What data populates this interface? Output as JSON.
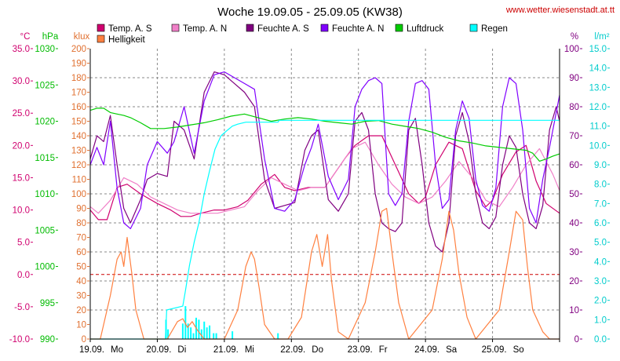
{
  "chart_data": {
    "type": "line",
    "title": "Woche 19.09.05 - 25.09.05 (KW38)",
    "source": "www.wetter.wiesenstadt.at.tt",
    "x_labels": [
      "19.09.",
      "Mo",
      "20.09.",
      "Di",
      "21.09.",
      "Mi",
      "22.09.",
      "Do",
      "23.09.",
      "Fr",
      "24.09.",
      "Sa",
      "25.09.",
      "So"
    ],
    "x_range": [
      0,
      7
    ],
    "axes": {
      "temp": {
        "unit": "°C",
        "range": [
          -10,
          35
        ],
        "ticks": [
          "35.0",
          "30.0",
          "25.0",
          "20.0",
          "15.0",
          "10.0",
          "5.0",
          "0.0",
          "-5.0",
          "-10.0"
        ],
        "color": "#d0006f"
      },
      "pressure": {
        "unit": "hPa",
        "range": [
          990,
          1030
        ],
        "ticks": [
          "1030",
          "1025",
          "1020",
          "1015",
          "1010",
          "1005",
          "1000",
          "995",
          "990"
        ],
        "color": "#00bb00"
      },
      "lux": {
        "unit": "klux",
        "range": [
          0,
          200
        ],
        "ticks": [
          "200",
          "190",
          "180",
          "170",
          "160",
          "150",
          "140",
          "130",
          "120",
          "110",
          "100",
          "90",
          "80",
          "70",
          "60",
          "50",
          "40",
          "30",
          "20",
          "10",
          "0"
        ],
        "color": "#e07030"
      },
      "humidity": {
        "unit": "%",
        "range": [
          0,
          100
        ],
        "ticks": [
          "100",
          "90",
          "80",
          "70",
          "60",
          "50",
          "40",
          "30",
          "20",
          "10",
          "0"
        ],
        "color": "#800080"
      },
      "rain": {
        "unit": "l/m²",
        "range": [
          0,
          15
        ],
        "ticks": [
          "15.0",
          "14.0",
          "13.0",
          "12.0",
          "11.0",
          "10.0",
          "9.0",
          "8.0",
          "7.0",
          "6.0",
          "5.0",
          "4.0",
          "3.0",
          "2.0",
          "1.0",
          "0.0"
        ],
        "color": "#00cccc"
      }
    },
    "legend": [
      {
        "name": "Temp. A. S",
        "color": "#d0006f"
      },
      {
        "name": "Temp. A. N",
        "color": "#f080c8"
      },
      {
        "name": "Feuchte A. S",
        "color": "#800080"
      },
      {
        "name": "Feuchte A. N",
        "color": "#8000ff"
      },
      {
        "name": "Luftdruck",
        "color": "#00cc00"
      },
      {
        "name": "Regen",
        "color": "#00ffff"
      },
      {
        "name": "Helligkeit",
        "color": "#ff8040"
      }
    ],
    "series": [
      {
        "name": "Temp. A. S",
        "axis": "temp",
        "color": "#d0006f",
        "x": [
          0,
          0.12,
          0.25,
          0.4,
          0.55,
          0.75,
          1.0,
          1.2,
          1.35,
          1.5,
          1.65,
          1.85,
          2.0,
          2.2,
          2.35,
          2.55,
          2.75,
          2.9,
          3.05,
          3.25,
          3.5,
          3.8,
          3.95,
          4.15,
          4.35,
          4.55,
          4.75,
          4.9,
          5.0,
          5.15,
          5.35,
          5.55,
          5.75,
          5.9,
          6.0,
          6.15,
          6.35,
          6.5,
          6.65,
          6.8,
          7.0
        ],
        "y": [
          10,
          8.5,
          8.5,
          13.5,
          14,
          12.5,
          11,
          10,
          9,
          9,
          9.5,
          10,
          10,
          10.5,
          11.5,
          14,
          15.5,
          13.5,
          13,
          13.5,
          13.5,
          18,
          20,
          21.5,
          21.5,
          17,
          12.5,
          11,
          12,
          17,
          20.5,
          19.5,
          13,
          10.5,
          11.5,
          15.5,
          19,
          20,
          14.5,
          11,
          9.5
        ]
      },
      {
        "name": "Temp. A. N",
        "axis": "temp",
        "color": "#f080c8",
        "x": [
          0,
          0.12,
          0.3,
          0.5,
          0.7,
          0.9,
          1.1,
          1.3,
          1.5,
          1.7,
          1.9,
          2.1,
          2.3,
          2.5,
          2.7,
          2.9,
          3.1,
          3.3,
          3.5,
          3.7,
          3.9,
          4.1,
          4.3,
          4.5,
          4.7,
          4.9,
          5.1,
          5.3,
          5.5,
          5.7,
          5.9,
          6.1,
          6.3,
          6.5,
          6.7,
          6.9,
          7.0
        ],
        "y": [
          10.5,
          9.5,
          11.5,
          15,
          14,
          12,
          11,
          10,
          9.5,
          9.5,
          9.5,
          10,
          10.5,
          13,
          15,
          14,
          13,
          13.5,
          13.5,
          16.5,
          19.5,
          20.5,
          17,
          14,
          12,
          11,
          12,
          14.5,
          17.5,
          15,
          11.5,
          10.5,
          13.5,
          17,
          19.5,
          15.5,
          13
        ]
      },
      {
        "name": "Feuchte A. S",
        "axis": "humidity",
        "color": "#800080",
        "x": [
          0,
          0.1,
          0.2,
          0.3,
          0.4,
          0.5,
          0.6,
          0.75,
          0.85,
          1.0,
          1.15,
          1.25,
          1.4,
          1.55,
          1.7,
          1.85,
          2.0,
          2.15,
          2.3,
          2.45,
          2.6,
          2.75,
          2.9,
          3.05,
          3.2,
          3.3,
          3.4,
          3.55,
          3.7,
          3.85,
          3.95,
          4.05,
          4.15,
          4.25,
          4.35,
          4.45,
          4.55,
          4.65,
          4.75,
          4.85,
          4.95,
          5.05,
          5.15,
          5.25,
          5.35,
          5.45,
          5.55,
          5.65,
          5.75,
          5.85,
          5.95,
          6.05,
          6.15,
          6.25,
          6.35,
          6.45,
          6.55,
          6.65,
          6.75,
          6.85,
          6.95,
          7.0
        ],
        "y": [
          62,
          70,
          68,
          77,
          60,
          45,
          40,
          48,
          55,
          57,
          56,
          75,
          72,
          62,
          85,
          92,
          91,
          88,
          85,
          80,
          55,
          45,
          46,
          47,
          65,
          70,
          72,
          48,
          44,
          50,
          75,
          78,
          72,
          50,
          40,
          38,
          37,
          40,
          72,
          76,
          60,
          40,
          32,
          30,
          40,
          70,
          78,
          68,
          50,
          40,
          38,
          42,
          60,
          70,
          66,
          50,
          40,
          38,
          46,
          72,
          80,
          75
        ]
      },
      {
        "name": "Feuchte A. N",
        "axis": "humidity",
        "color": "#8000ff",
        "x": [
          0,
          0.1,
          0.2,
          0.3,
          0.4,
          0.5,
          0.6,
          0.75,
          0.85,
          1.0,
          1.15,
          1.25,
          1.4,
          1.55,
          1.7,
          1.85,
          2.0,
          2.15,
          2.3,
          2.45,
          2.6,
          2.75,
          2.9,
          3.05,
          3.2,
          3.3,
          3.4,
          3.55,
          3.7,
          3.85,
          3.95,
          4.05,
          4.15,
          4.25,
          4.35,
          4.45,
          4.55,
          4.65,
          4.75,
          4.85,
          4.95,
          5.05,
          5.15,
          5.25,
          5.35,
          5.45,
          5.55,
          5.65,
          5.75,
          5.85,
          5.95,
          6.05,
          6.15,
          6.25,
          6.35,
          6.45,
          6.55,
          6.65,
          6.75,
          6.85,
          6.95,
          7.0
        ],
        "y": [
          60,
          66,
          60,
          75,
          52,
          40,
          38,
          45,
          60,
          68,
          64,
          68,
          80,
          64,
          82,
          91,
          92,
          90,
          88,
          86,
          62,
          45,
          44,
          48,
          60,
          66,
          74,
          56,
          48,
          55,
          80,
          86,
          89,
          90,
          88,
          50,
          46,
          50,
          75,
          88,
          89,
          86,
          60,
          45,
          48,
          72,
          82,
          76,
          55,
          46,
          44,
          52,
          80,
          90,
          88,
          72,
          45,
          40,
          55,
          66,
          78,
          84
        ]
      },
      {
        "name": "Luftdruck",
        "axis": "pressure",
        "color": "#00cc00",
        "x": [
          0,
          0.1,
          0.2,
          0.3,
          0.4,
          0.5,
          0.6,
          0.75,
          0.9,
          1.1,
          1.3,
          1.5,
          1.7,
          1.9,
          2.1,
          2.3,
          2.5,
          2.7,
          2.9,
          3.1,
          3.3,
          3.5,
          3.7,
          3.9,
          4.1,
          4.3,
          4.5,
          4.7,
          4.9,
          5.1,
          5.3,
          5.5,
          5.7,
          5.9,
          6.1,
          6.3,
          6.5,
          6.6,
          6.7,
          6.8,
          6.9,
          7.0
        ],
        "y": [
          1021.5,
          1021.8,
          1021.8,
          1021.2,
          1021.0,
          1020.8,
          1020.5,
          1019.8,
          1019.0,
          1019.0,
          1019.2,
          1019.5,
          1019.8,
          1020.2,
          1020.7,
          1021.0,
          1020.5,
          1020.0,
          1020.3,
          1020.5,
          1020.3,
          1020.0,
          1019.8,
          1019.6,
          1020.0,
          1020.1,
          1019.6,
          1019.3,
          1019.0,
          1018.5,
          1017.8,
          1017.3,
          1017.0,
          1016.6,
          1016.4,
          1016.2,
          1016.0,
          1015.6,
          1014.5,
          1014.8,
          1015.2,
          1015.5
        ]
      },
      {
        "name": "Regen",
        "axis": "rain",
        "color": "#00ffff",
        "x": [
          0,
          1.0,
          1.12,
          1.14,
          1.38,
          1.42,
          1.48,
          1.55,
          1.62,
          1.7,
          1.78,
          1.86,
          1.95,
          2.05,
          2.12,
          2.2,
          2.32,
          2.5,
          2.7,
          2.8,
          2.82,
          3.1,
          7.0
        ],
        "y": [
          0,
          0,
          0,
          1.5,
          1.7,
          2.5,
          3.8,
          5.0,
          6.0,
          7.5,
          8.7,
          9.8,
          10.5,
          10.8,
          11.0,
          11.1,
          11.2,
          11.2,
          11.2,
          11.2,
          11.3,
          11.3,
          11.3
        ]
      },
      {
        "name": "Helligkeit",
        "axis": "lux",
        "color": "#ff8040",
        "x": [
          0,
          0.15,
          0.3,
          0.4,
          0.46,
          0.5,
          0.55,
          0.62,
          0.68,
          0.8,
          0.95,
          1.15,
          1.3,
          1.38,
          1.45,
          1.52,
          1.6,
          1.7,
          2.0,
          2.2,
          2.32,
          2.4,
          2.45,
          2.52,
          2.6,
          2.75,
          2.95,
          3.15,
          3.3,
          3.38,
          3.46,
          3.54,
          3.6,
          3.7,
          3.85,
          4.1,
          4.25,
          4.35,
          4.42,
          4.5,
          4.6,
          4.75,
          5.1,
          5.25,
          5.35,
          5.42,
          5.5,
          5.62,
          5.75,
          6.1,
          6.25,
          6.35,
          6.45,
          6.52,
          6.6,
          6.75,
          6.85,
          7.0
        ],
        "y": [
          0,
          0,
          30,
          55,
          60,
          50,
          70,
          45,
          20,
          0,
          0,
          0,
          12,
          14,
          8,
          12,
          6,
          0,
          0,
          20,
          50,
          60,
          55,
          35,
          10,
          0,
          0,
          15,
          60,
          72,
          50,
          72,
          40,
          5,
          0,
          25,
          60,
          88,
          90,
          60,
          25,
          0,
          20,
          55,
          88,
          75,
          45,
          15,
          0,
          20,
          60,
          88,
          82,
          50,
          20,
          5,
          0,
          0
        ]
      }
    ],
    "rain_bars": {
      "axis": "rain",
      "color": "#00ffff",
      "x": [
        1.13,
        1.16,
        1.38,
        1.42,
        1.46,
        1.5,
        1.54,
        1.58,
        1.62,
        1.66,
        1.7,
        1.74,
        1.78,
        1.84,
        1.88,
        2.12,
        2.8
      ],
      "y": [
        1.0,
        0.5,
        0.8,
        1.7,
        0.8,
        0.6,
        0.3,
        1.1,
        1.0,
        0.5,
        0.9,
        0.6,
        0.7,
        0.3,
        0.3,
        0.4,
        0.3
      ]
    },
    "ref_line": {
      "axis": "temp",
      "value": 0,
      "color": "#cc0000"
    },
    "grid": true
  }
}
